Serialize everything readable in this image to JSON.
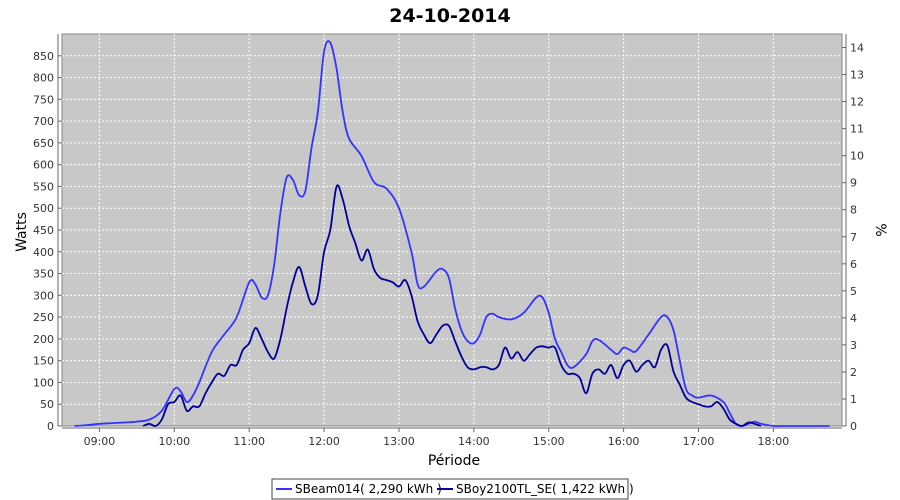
{
  "chart_data": {
    "type": "line",
    "title": "24-10-2014",
    "xlabel": "Période",
    "ylabel": "Watts",
    "y2label": "%",
    "ylim": [
      0,
      900
    ],
    "y2lim": [
      0,
      14.5
    ],
    "xlim": [
      "08:30",
      "18:55"
    ],
    "yticks": [
      0,
      50,
      100,
      150,
      200,
      250,
      300,
      350,
      400,
      450,
      500,
      550,
      600,
      650,
      700,
      750,
      800,
      850
    ],
    "y2ticks": [
      0,
      1,
      2,
      3,
      4,
      5,
      6,
      7,
      8,
      9,
      10,
      11,
      12,
      13,
      14
    ],
    "xticks": [
      "09:00",
      "10:00",
      "11:00",
      "12:00",
      "13:00",
      "14:00",
      "15:00",
      "16:00",
      "17:00",
      "18:00"
    ],
    "grid": true,
    "legend_position": "bottom",
    "series": [
      {
        "name": "SBeam014( 2,290 kWh )",
        "color": "#3333ff",
        "points": [
          [
            "08:40",
            0
          ],
          [
            "08:50",
            2
          ],
          [
            "09:00",
            5
          ],
          [
            "09:20",
            8
          ],
          [
            "09:30",
            10
          ],
          [
            "09:40",
            15
          ],
          [
            "09:50",
            35
          ],
          [
            "10:00",
            85
          ],
          [
            "10:05",
            80
          ],
          [
            "10:10",
            55
          ],
          [
            "10:15",
            70
          ],
          [
            "10:20",
            100
          ],
          [
            "10:30",
            170
          ],
          [
            "10:40",
            210
          ],
          [
            "10:50",
            250
          ],
          [
            "11:00",
            330
          ],
          [
            "11:05",
            325
          ],
          [
            "11:10",
            295
          ],
          [
            "11:15",
            300
          ],
          [
            "11:20",
            370
          ],
          [
            "11:25",
            490
          ],
          [
            "11:30",
            570
          ],
          [
            "11:35",
            565
          ],
          [
            "11:40",
            530
          ],
          [
            "11:45",
            540
          ],
          [
            "11:50",
            640
          ],
          [
            "11:55",
            720
          ],
          [
            "12:00",
            860
          ],
          [
            "12:05",
            880
          ],
          [
            "12:10",
            820
          ],
          [
            "12:15",
            720
          ],
          [
            "12:20",
            660
          ],
          [
            "12:30",
            620
          ],
          [
            "12:40",
            560
          ],
          [
            "12:50",
            545
          ],
          [
            "13:00",
            500
          ],
          [
            "13:10",
            400
          ],
          [
            "13:15",
            325
          ],
          [
            "13:20",
            320
          ],
          [
            "13:30",
            355
          ],
          [
            "13:35",
            360
          ],
          [
            "13:40",
            340
          ],
          [
            "13:45",
            270
          ],
          [
            "13:50",
            220
          ],
          [
            "13:55",
            195
          ],
          [
            "14:00",
            190
          ],
          [
            "14:05",
            210
          ],
          [
            "14:10",
            250
          ],
          [
            "14:15",
            258
          ],
          [
            "14:20",
            250
          ],
          [
            "14:30",
            245
          ],
          [
            "14:40",
            260
          ],
          [
            "14:50",
            295
          ],
          [
            "14:55",
            295
          ],
          [
            "15:00",
            260
          ],
          [
            "15:05",
            200
          ],
          [
            "15:10",
            170
          ],
          [
            "15:15",
            140
          ],
          [
            "15:20",
            135
          ],
          [
            "15:30",
            165
          ],
          [
            "15:35",
            195
          ],
          [
            "15:40",
            198
          ],
          [
            "15:50",
            175
          ],
          [
            "15:55",
            165
          ],
          [
            "16:00",
            180
          ],
          [
            "16:05",
            175
          ],
          [
            "16:10",
            172
          ],
          [
            "16:20",
            210
          ],
          [
            "16:30",
            250
          ],
          [
            "16:35",
            250
          ],
          [
            "16:40",
            220
          ],
          [
            "16:45",
            150
          ],
          [
            "16:50",
            85
          ],
          [
            "16:55",
            70
          ],
          [
            "17:00",
            65
          ],
          [
            "17:10",
            70
          ],
          [
            "17:20",
            55
          ],
          [
            "17:25",
            30
          ],
          [
            "17:30",
            5
          ],
          [
            "17:35",
            0
          ],
          [
            "17:40",
            5
          ],
          [
            "17:45",
            10
          ],
          [
            "17:50",
            5
          ],
          [
            "18:00",
            0
          ],
          [
            "18:10",
            0
          ],
          [
            "18:45",
            0
          ]
        ]
      },
      {
        "name": "SBoy2100TL_SE( 1,422 kWh )",
        "color": "#000099",
        "points": [
          [
            "09:35",
            0
          ],
          [
            "09:40",
            5
          ],
          [
            "09:45",
            0
          ],
          [
            "09:50",
            15
          ],
          [
            "09:55",
            50
          ],
          [
            "10:00",
            55
          ],
          [
            "10:05",
            70
          ],
          [
            "10:10",
            35
          ],
          [
            "10:15",
            45
          ],
          [
            "10:20",
            45
          ],
          [
            "10:25",
            75
          ],
          [
            "10:30",
            100
          ],
          [
            "10:35",
            120
          ],
          [
            "10:40",
            115
          ],
          [
            "10:45",
            140
          ],
          [
            "10:50",
            140
          ],
          [
            "10:55",
            175
          ],
          [
            "11:00",
            190
          ],
          [
            "11:05",
            225
          ],
          [
            "11:10",
            200
          ],
          [
            "11:15",
            170
          ],
          [
            "11:20",
            155
          ],
          [
            "11:25",
            200
          ],
          [
            "11:30",
            270
          ],
          [
            "11:35",
            330
          ],
          [
            "11:40",
            365
          ],
          [
            "11:45",
            320
          ],
          [
            "11:50",
            280
          ],
          [
            "11:55",
            300
          ],
          [
            "12:00",
            400
          ],
          [
            "12:05",
            450
          ],
          [
            "12:10",
            550
          ],
          [
            "12:15",
            520
          ],
          [
            "12:20",
            460
          ],
          [
            "12:25",
            420
          ],
          [
            "12:30",
            380
          ],
          [
            "12:35",
            405
          ],
          [
            "12:40",
            360
          ],
          [
            "12:45",
            340
          ],
          [
            "12:50",
            335
          ],
          [
            "12:55",
            330
          ],
          [
            "13:00",
            320
          ],
          [
            "13:05",
            335
          ],
          [
            "13:10",
            300
          ],
          [
            "13:15",
            240
          ],
          [
            "13:20",
            210
          ],
          [
            "13:25",
            190
          ],
          [
            "13:30",
            210
          ],
          [
            "13:35",
            230
          ],
          [
            "13:40",
            230
          ],
          [
            "13:45",
            195
          ],
          [
            "13:50",
            160
          ],
          [
            "13:55",
            135
          ],
          [
            "14:00",
            130
          ],
          [
            "14:05",
            135
          ],
          [
            "14:10",
            135
          ],
          [
            "14:15",
            130
          ],
          [
            "14:20",
            140
          ],
          [
            "14:25",
            180
          ],
          [
            "14:30",
            155
          ],
          [
            "14:35",
            170
          ],
          [
            "14:40",
            150
          ],
          [
            "14:45",
            165
          ],
          [
            "14:50",
            180
          ],
          [
            "14:55",
            183
          ],
          [
            "15:00",
            180
          ],
          [
            "15:05",
            180
          ],
          [
            "15:10",
            140
          ],
          [
            "15:15",
            120
          ],
          [
            "15:20",
            120
          ],
          [
            "15:25",
            110
          ],
          [
            "15:30",
            75
          ],
          [
            "15:35",
            120
          ],
          [
            "15:40",
            130
          ],
          [
            "15:45",
            120
          ],
          [
            "15:50",
            140
          ],
          [
            "15:55",
            110
          ],
          [
            "16:00",
            140
          ],
          [
            "16:05",
            150
          ],
          [
            "16:10",
            125
          ],
          [
            "16:15",
            140
          ],
          [
            "16:20",
            150
          ],
          [
            "16:25",
            135
          ],
          [
            "16:30",
            175
          ],
          [
            "16:35",
            185
          ],
          [
            "16:40",
            125
          ],
          [
            "16:45",
            95
          ],
          [
            "16:50",
            65
          ],
          [
            "16:55",
            55
          ],
          [
            "17:00",
            50
          ],
          [
            "17:05",
            45
          ],
          [
            "17:10",
            45
          ],
          [
            "17:15",
            55
          ],
          [
            "17:20",
            40
          ],
          [
            "17:25",
            15
          ],
          [
            "17:30",
            5
          ],
          [
            "17:35",
            0
          ],
          [
            "17:40",
            8
          ],
          [
            "17:45",
            5
          ],
          [
            "17:50",
            0
          ]
        ]
      }
    ]
  }
}
